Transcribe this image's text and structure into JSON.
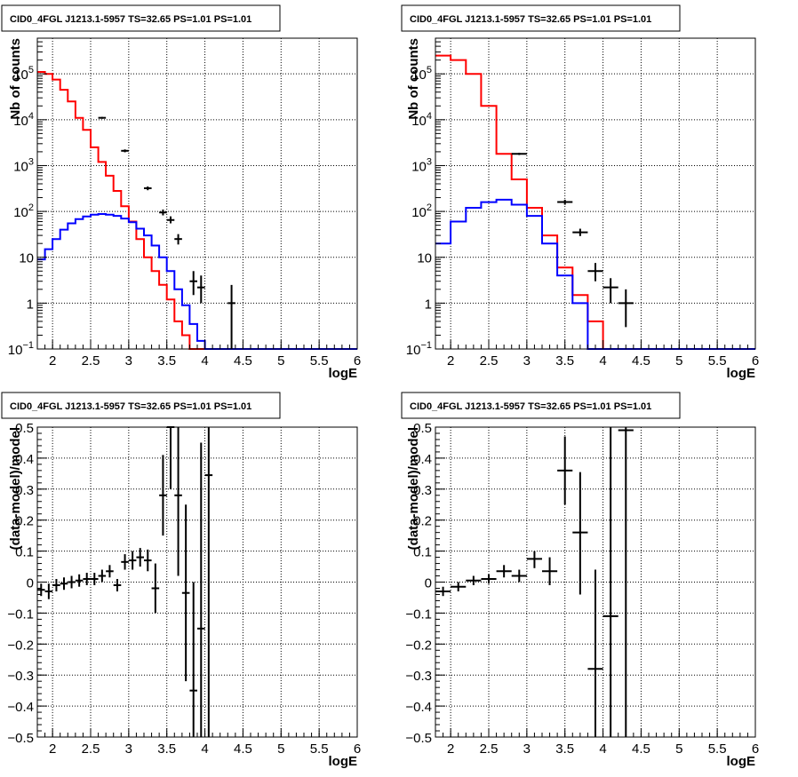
{
  "colors": {
    "data": "#000000",
    "model": "#ff0000",
    "source": "#0000ff",
    "frame": "#000000",
    "grid": "#000000"
  },
  "chart_data": [
    {
      "type": "histogram-log",
      "title": "CID0_4FGL J1213.1-5957 TS=32.65 PS=1.01 PS=1.01",
      "xlabel": "logE",
      "ylabel": "Nb of counts",
      "xlim": [
        1.8,
        6
      ],
      "ylim": [
        0.1,
        600000
      ],
      "log_y": true,
      "grid": true,
      "xticks": [
        2,
        2.5,
        3,
        3.5,
        4,
        4.5,
        5,
        5.5,
        6
      ],
      "xtick_labels": [
        "2",
        "2.5",
        "3",
        "3.5",
        "4",
        "4.5",
        "5",
        "5.5",
        "6"
      ],
      "yticks": [
        0.1,
        1,
        10,
        100,
        1000,
        10000,
        100000
      ],
      "ytick_labels": [
        {
          "base": "10",
          "exp": "−1"
        },
        {
          "base": "1",
          "exp": ""
        },
        {
          "base": "10",
          "exp": ""
        },
        {
          "base": "10",
          "exp": "2"
        },
        {
          "base": "10",
          "exp": "3"
        },
        {
          "base": "10",
          "exp": "4"
        },
        {
          "base": "10",
          "exp": "5"
        }
      ],
      "bin_edges_start": 1.8,
      "bin_width": 0.1,
      "series": [
        {
          "kind": "step",
          "color": "#ff0000",
          "values": [
            110000,
            100000,
            75000,
            45000,
            25000,
            11000,
            6000,
            2500,
            1200,
            600,
            280,
            130,
            60,
            25,
            10,
            5,
            2.5,
            1.2,
            0.4,
            0.2,
            0.1,
            0.1,
            0.1,
            0.1,
            0.1,
            0.1,
            0.1,
            0.1,
            0.1,
            0.1,
            0.1,
            0.1,
            0.1,
            0.1,
            0.1,
            0.1,
            0.1,
            0.1,
            0.1,
            0.1,
            0.1,
            0.1
          ]
        },
        {
          "kind": "step",
          "color": "#0000ff",
          "values": [
            9,
            15,
            25,
            40,
            55,
            68,
            78,
            85,
            88,
            85,
            80,
            70,
            58,
            42,
            30,
            18,
            10,
            5,
            2,
            0.9,
            0.35,
            0.15,
            0.1,
            0.1,
            0.1,
            0.1,
            0.1,
            0.1,
            0.1,
            0.1,
            0.1,
            0.1,
            0.1,
            0.1,
            0.1,
            0.1,
            0.1,
            0.1,
            0.1,
            0.1,
            0.1,
            0.1
          ]
        },
        {
          "kind": "points",
          "color": "#000000",
          "xerr": 0.05,
          "points": [
            {
              "x": 2.65,
              "y": 11000,
              "lo": 10500,
              "hi": 11500
            },
            {
              "x": 2.95,
              "y": 2100,
              "lo": 1950,
              "hi": 2250
            },
            {
              "x": 3.25,
              "y": 320,
              "lo": 290,
              "hi": 350
            },
            {
              "x": 3.45,
              "y": 95,
              "lo": 82,
              "hi": 110
            },
            {
              "x": 3.55,
              "y": 65,
              "lo": 55,
              "hi": 78
            },
            {
              "x": 3.65,
              "y": 25,
              "lo": 19,
              "hi": 32
            },
            {
              "x": 3.85,
              "y": 3,
              "lo": 1.5,
              "hi": 5
            },
            {
              "x": 3.95,
              "y": 2.2,
              "lo": 1,
              "hi": 4
            },
            {
              "x": 4.35,
              "y": 1,
              "lo": 0.1,
              "hi": 2.5
            }
          ]
        }
      ]
    },
    {
      "type": "histogram-log",
      "title": "CID0_4FGL J1213.1-5957 TS=32.65 PS=1.01 PS=1.01",
      "xlabel": "logE",
      "ylabel": "Nb of counts",
      "xlim": [
        1.8,
        6
      ],
      "ylim": [
        0.1,
        600000
      ],
      "log_y": true,
      "grid": true,
      "xticks": [
        2,
        2.5,
        3,
        3.5,
        4,
        4.5,
        5,
        5.5,
        6
      ],
      "xtick_labels": [
        "2",
        "2.5",
        "3",
        "3.5",
        "4",
        "4.5",
        "5",
        "5.5",
        "6"
      ],
      "yticks": [
        0.1,
        1,
        10,
        100,
        1000,
        10000,
        100000
      ],
      "ytick_labels": [
        {
          "base": "10",
          "exp": "−1"
        },
        {
          "base": "1",
          "exp": ""
        },
        {
          "base": "10",
          "exp": ""
        },
        {
          "base": "10",
          "exp": "2"
        },
        {
          "base": "10",
          "exp": "3"
        },
        {
          "base": "10",
          "exp": "4"
        },
        {
          "base": "10",
          "exp": "5"
        }
      ],
      "bin_edges_start": 1.8,
      "bin_width": 0.2,
      "series": [
        {
          "kind": "step",
          "color": "#ff0000",
          "values": [
            250000,
            200000,
            100000,
            20000,
            1800,
            500,
            120,
            30,
            6,
            1.5,
            0.4,
            0.1,
            0.1,
            0.1,
            0.1,
            0.1,
            0.1,
            0.1,
            0.1,
            0.1,
            0.1
          ]
        },
        {
          "kind": "step",
          "color": "#0000ff",
          "values": [
            20,
            60,
            120,
            160,
            180,
            140,
            80,
            20,
            4,
            1,
            0.1,
            0.1,
            0.1,
            0.1,
            0.1,
            0.1,
            0.1,
            0.1,
            0.1,
            0.1,
            0.1
          ]
        },
        {
          "kind": "points",
          "color": "#000000",
          "xerr": 0.1,
          "points": [
            {
              "x": 2.9,
              "y": 1800,
              "lo": 1700,
              "hi": 1900
            },
            {
              "x": 3.5,
              "y": 160,
              "lo": 140,
              "hi": 180
            },
            {
              "x": 3.7,
              "y": 35,
              "lo": 29,
              "hi": 42
            },
            {
              "x": 3.9,
              "y": 5,
              "lo": 3,
              "hi": 7.5
            },
            {
              "x": 4.1,
              "y": 2.2,
              "lo": 1,
              "hi": 3.5
            },
            {
              "x": 4.3,
              "y": 1,
              "lo": 0.3,
              "hi": 2
            }
          ]
        }
      ]
    },
    {
      "type": "residuals",
      "title": "CID0_4FGL J1213.1-5957 TS=32.65 PS=1.01 PS=1.01",
      "xlabel": "logE",
      "ylabel": "(data-model)/model",
      "xlim": [
        1.8,
        6
      ],
      "ylim": [
        -0.5,
        0.5
      ],
      "log_y": false,
      "grid": true,
      "xticks": [
        2,
        2.5,
        3,
        3.5,
        4,
        4.5,
        5,
        5.5,
        6
      ],
      "xtick_labels": [
        "2",
        "2.5",
        "3",
        "3.5",
        "4",
        "4.5",
        "5",
        "5.5",
        "6"
      ],
      "yticks": [
        -0.5,
        -0.4,
        -0.3,
        -0.2,
        -0.1,
        0,
        0.1,
        0.2,
        0.3,
        0.4,
        0.5
      ],
      "ytick_labels": [
        {
          "base": "−0.5",
          "exp": ""
        },
        {
          "base": "−0.4",
          "exp": ""
        },
        {
          "base": "−0.3",
          "exp": ""
        },
        {
          "base": "−0.2",
          "exp": ""
        },
        {
          "base": "−0.1",
          "exp": ""
        },
        {
          "base": "0",
          "exp": ""
        },
        {
          "base": "0.1",
          "exp": ""
        },
        {
          "base": "0.2",
          "exp": ""
        },
        {
          "base": "0.3",
          "exp": ""
        },
        {
          "base": "0.4",
          "exp": ""
        },
        {
          "base": "0.5",
          "exp": ""
        }
      ],
      "series": [
        {
          "kind": "points",
          "color": "#000000",
          "xerr": 0.05,
          "points": [
            {
              "x": 1.85,
              "y": -0.025,
              "lo": -0.045,
              "hi": -0.005
            },
            {
              "x": 1.95,
              "y": -0.03,
              "lo": -0.055,
              "hi": -0.005
            },
            {
              "x": 2.05,
              "y": -0.01,
              "lo": -0.03,
              "hi": 0.01
            },
            {
              "x": 2.15,
              "y": -0.005,
              "lo": -0.025,
              "hi": 0.015
            },
            {
              "x": 2.25,
              "y": 0,
              "lo": -0.02,
              "hi": 0.02
            },
            {
              "x": 2.35,
              "y": 0.005,
              "lo": -0.015,
              "hi": 0.025
            },
            {
              "x": 2.45,
              "y": 0.01,
              "lo": -0.01,
              "hi": 0.03
            },
            {
              "x": 2.55,
              "y": 0.01,
              "lo": -0.01,
              "hi": 0.03
            },
            {
              "x": 2.65,
              "y": 0.02,
              "lo": 0.0,
              "hi": 0.04
            },
            {
              "x": 2.75,
              "y": 0.035,
              "lo": 0.015,
              "hi": 0.055
            },
            {
              "x": 2.85,
              "y": -0.01,
              "lo": -0.03,
              "hi": 0.01
            },
            {
              "x": 2.95,
              "y": 0.065,
              "lo": 0.04,
              "hi": 0.09
            },
            {
              "x": 3.05,
              "y": 0.07,
              "lo": 0.04,
              "hi": 0.1
            },
            {
              "x": 3.15,
              "y": 0.08,
              "lo": 0.05,
              "hi": 0.11
            },
            {
              "x": 3.25,
              "y": 0.07,
              "lo": 0.035,
              "hi": 0.105
            },
            {
              "x": 3.35,
              "y": -0.02,
              "lo": -0.1,
              "hi": 0.06
            },
            {
              "x": 3.45,
              "y": 0.28,
              "lo": 0.15,
              "hi": 0.41
            },
            {
              "x": 3.55,
              "y": 0.5,
              "lo": 0.3,
              "hi": 0.5
            },
            {
              "x": 3.65,
              "y": 0.28,
              "lo": 0.02,
              "hi": 0.5
            },
            {
              "x": 3.75,
              "y": -0.035,
              "lo": -0.32,
              "hi": 0.25
            },
            {
              "x": 3.85,
              "y": -0.35,
              "lo": -0.5,
              "hi": 0.0
            },
            {
              "x": 3.95,
              "y": -0.15,
              "lo": -0.5,
              "hi": 0.45
            },
            {
              "x": 4.05,
              "y": 0.345,
              "lo": -0.5,
              "hi": 0.5
            }
          ]
        }
      ]
    },
    {
      "type": "residuals",
      "title": "CID0_4FGL J1213.1-5957 TS=32.65 PS=1.01 PS=1.01",
      "xlabel": "logE",
      "ylabel": "(data-model)/model",
      "xlim": [
        1.8,
        6
      ],
      "ylim": [
        -0.5,
        0.5
      ],
      "log_y": false,
      "grid": true,
      "xticks": [
        2,
        2.5,
        3,
        3.5,
        4,
        4.5,
        5,
        5.5,
        6
      ],
      "xtick_labels": [
        "2",
        "2.5",
        "3",
        "3.5",
        "4",
        "4.5",
        "5",
        "5.5",
        "6"
      ],
      "yticks": [
        -0.5,
        -0.4,
        -0.3,
        -0.2,
        -0.1,
        0,
        0.1,
        0.2,
        0.3,
        0.4,
        0.5
      ],
      "ytick_labels": [
        {
          "base": "−0.5",
          "exp": ""
        },
        {
          "base": "−0.4",
          "exp": ""
        },
        {
          "base": "−0.3",
          "exp": ""
        },
        {
          "base": "−0.2",
          "exp": ""
        },
        {
          "base": "−0.1",
          "exp": ""
        },
        {
          "base": "0",
          "exp": ""
        },
        {
          "base": "0.1",
          "exp": ""
        },
        {
          "base": "0.2",
          "exp": ""
        },
        {
          "base": "0.3",
          "exp": ""
        },
        {
          "base": "0.4",
          "exp": ""
        },
        {
          "base": "0.5",
          "exp": ""
        }
      ],
      "series": [
        {
          "kind": "points",
          "color": "#000000",
          "xerr": 0.1,
          "points": [
            {
              "x": 1.9,
              "y": -0.03,
              "lo": -0.045,
              "hi": -0.015
            },
            {
              "x": 2.1,
              "y": -0.015,
              "lo": -0.03,
              "hi": 0.0
            },
            {
              "x": 2.3,
              "y": 0.005,
              "lo": -0.01,
              "hi": 0.02
            },
            {
              "x": 2.5,
              "y": 0.01,
              "lo": -0.005,
              "hi": 0.025
            },
            {
              "x": 2.7,
              "y": 0.035,
              "lo": 0.015,
              "hi": 0.055
            },
            {
              "x": 2.9,
              "y": 0.02,
              "lo": 0.0,
              "hi": 0.04
            },
            {
              "x": 3.1,
              "y": 0.075,
              "lo": 0.045,
              "hi": 0.1
            },
            {
              "x": 3.3,
              "y": 0.035,
              "lo": -0.01,
              "hi": 0.08
            },
            {
              "x": 3.5,
              "y": 0.36,
              "lo": 0.25,
              "hi": 0.47
            },
            {
              "x": 3.7,
              "y": 0.16,
              "lo": -0.04,
              "hi": 0.355
            },
            {
              "x": 3.9,
              "y": -0.28,
              "lo": -0.5,
              "hi": 0.04
            },
            {
              "x": 4.1,
              "y": -0.11,
              "lo": -0.5,
              "hi": 0.5
            },
            {
              "x": 4.3,
              "y": 0.49,
              "lo": -0.5,
              "hi": 0.5
            }
          ]
        }
      ]
    }
  ]
}
